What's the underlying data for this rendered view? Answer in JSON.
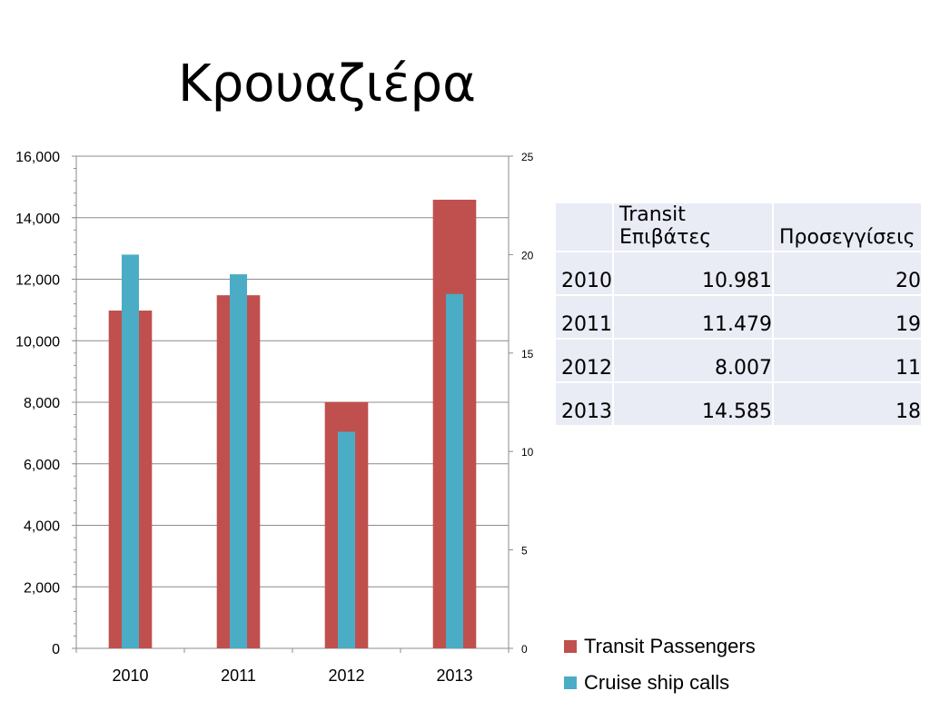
{
  "title": "Κρουαζιέρα",
  "chart_data": {
    "type": "bar",
    "categories": [
      "2010",
      "2011",
      "2012",
      "2013"
    ],
    "series": [
      {
        "name": "Transit Passengers",
        "axis": "left",
        "color": "#c0504d",
        "values": [
          10981,
          11479,
          8007,
          14585
        ]
      },
      {
        "name": "Cruise ship calls",
        "axis": "right",
        "color": "#4bacc6",
        "values": [
          20,
          19,
          11,
          18
        ]
      }
    ],
    "y_left": {
      "min": 0,
      "max": 16000,
      "ticks": [
        "0",
        "2,000",
        "4,000",
        "6,000",
        "8,000",
        "10,000",
        "12,000",
        "14,000",
        "16,000"
      ]
    },
    "y_right": {
      "min": 0,
      "max": 25,
      "ticks": [
        "0",
        "5",
        "10",
        "15",
        "20",
        "25"
      ]
    },
    "grid": true,
    "legend_position": "bottom-right"
  },
  "table": {
    "headers": [
      "",
      "Transit Επιβάτες",
      "Προσεγγίσεις"
    ],
    "rows": [
      [
        "2010",
        "10.981",
        "20"
      ],
      [
        "2011",
        "11.479",
        "19"
      ],
      [
        "2012",
        "8.007",
        "11"
      ],
      [
        "2013",
        "14.585",
        "18"
      ]
    ]
  },
  "legend": {
    "items": [
      {
        "label": "Transit Passengers",
        "color": "#c0504d"
      },
      {
        "label": "Cruise ship calls",
        "color": "#4bacc6"
      }
    ]
  }
}
